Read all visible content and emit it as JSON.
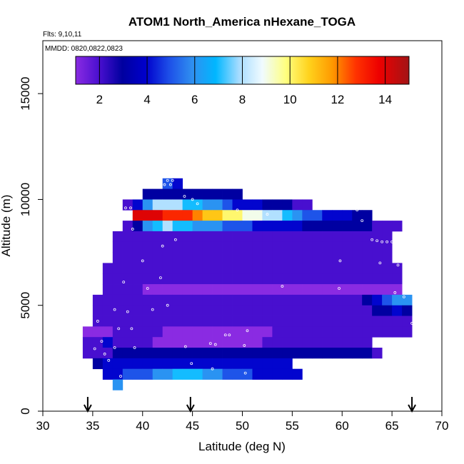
{
  "chart_data": {
    "type": "heatmap",
    "title": "ATOM1 North_America nHexane_TOGA",
    "flights_label": "Flts: 9,10,11",
    "dates_label": "MMDD: 0820,0822,0823",
    "xlabel": "Latitude (deg N)",
    "ylabel": "Altitude (m)",
    "xlim": [
      30,
      70
    ],
    "ylim": [
      0,
      17500
    ],
    "x_ticks": [
      "30",
      "35",
      "40",
      "45",
      "50",
      "55",
      "60",
      "65",
      "70"
    ],
    "y_ticks": [
      "0",
      "5000",
      "10000",
      "15000"
    ],
    "colorbar": {
      "range": [
        1,
        15
      ],
      "tick_values": [
        2,
        4,
        6,
        8,
        10,
        12,
        14
      ],
      "tick_labels": [
        "2",
        "4",
        "6",
        "8",
        "10",
        "12",
        "14"
      ]
    },
    "cell_size": {
      "lat": 1.0,
      "alt": 500
    },
    "grid_rows": [
      {
        "alt": 10750,
        "lat_start": 42,
        "values": [
          5,
          4
        ]
      },
      {
        "alt": 10250,
        "lat_start": 40,
        "values": [
          3,
          3,
          3,
          3,
          3,
          3,
          3,
          3,
          3,
          3
        ]
      },
      {
        "alt": 9750,
        "lat_start": 38,
        "values": [
          2,
          4,
          6,
          8,
          8,
          8,
          7,
          7,
          6,
          6,
          5,
          4,
          4,
          4,
          3,
          3,
          3,
          2,
          2
        ]
      },
      {
        "alt": 9250,
        "lat_start": 39,
        "values": [
          14,
          14,
          14,
          13,
          13,
          13,
          12,
          11,
          11,
          10,
          10,
          9,
          9,
          8,
          8,
          7,
          6,
          5,
          5,
          4,
          4,
          4,
          3,
          3
        ]
      },
      {
        "alt": 8750,
        "lat_start": 38,
        "values": [
          2,
          3,
          6,
          7,
          8,
          7,
          7,
          6,
          6,
          6,
          5,
          5,
          5,
          4,
          4,
          4,
          4,
          4,
          3,
          3,
          3,
          3,
          3,
          3,
          3,
          2,
          2,
          2
        ]
      },
      {
        "alt": 8250,
        "lat_start": 37,
        "values": [
          2,
          2,
          2,
          2,
          2,
          2,
          2,
          2,
          2,
          2,
          2,
          2,
          2,
          2,
          2,
          2,
          2,
          2,
          2,
          2,
          2,
          2,
          2,
          2,
          2,
          2,
          2,
          2
        ]
      },
      {
        "alt": 7750,
        "lat_start": 37,
        "values": [
          2,
          2,
          2,
          2,
          2,
          2,
          2,
          2,
          2,
          2,
          2,
          2,
          2,
          2,
          2,
          2,
          2,
          2,
          2,
          2,
          2,
          2,
          2,
          2,
          2,
          2,
          2,
          2
        ]
      },
      {
        "alt": 7250,
        "lat_start": 37,
        "values": [
          2,
          2,
          2,
          2,
          2,
          2,
          2,
          2,
          2,
          2,
          2,
          2,
          2,
          2,
          2,
          2,
          2,
          2,
          2,
          2,
          2,
          2,
          2,
          2,
          2,
          2,
          2,
          2
        ]
      },
      {
        "alt": 6750,
        "lat_start": 36,
        "values": [
          2,
          2,
          2,
          2,
          2,
          2,
          2,
          2,
          2,
          2,
          2,
          2,
          2,
          2,
          2,
          2,
          2,
          2,
          2,
          2,
          2,
          2,
          2,
          2,
          2,
          2,
          2,
          2,
          2,
          2
        ]
      },
      {
        "alt": 6250,
        "lat_start": 36,
        "values": [
          2,
          2,
          2,
          2,
          2,
          2,
          2,
          2,
          2,
          2,
          2,
          2,
          2,
          2,
          2,
          2,
          2,
          2,
          2,
          2,
          2,
          2,
          2,
          2,
          2,
          2,
          2,
          2,
          2,
          2
        ]
      },
      {
        "alt": 5750,
        "lat_start": 36,
        "values": [
          2,
          2,
          2,
          2,
          1,
          1,
          1,
          1,
          1,
          1,
          1,
          1,
          1,
          1,
          1,
          1,
          1,
          1,
          1,
          1,
          1,
          1,
          1,
          1,
          1,
          1,
          1,
          1,
          1,
          1
        ]
      },
      {
        "alt": 5250,
        "lat_start": 35,
        "values": [
          2,
          2,
          2,
          2,
          2,
          2,
          2,
          2,
          2,
          2,
          2,
          2,
          2,
          2,
          2,
          2,
          2,
          2,
          2,
          2,
          2,
          2,
          2,
          2,
          2,
          2,
          2,
          3,
          4,
          5,
          6,
          6
        ]
      },
      {
        "alt": 4750,
        "lat_start": 35,
        "values": [
          2,
          2,
          2,
          2,
          2,
          2,
          2,
          2,
          2,
          2,
          2,
          2,
          2,
          2,
          2,
          2,
          2,
          2,
          2,
          2,
          2,
          2,
          2,
          2,
          2,
          2,
          2,
          2,
          3,
          3,
          4,
          3
        ]
      },
      {
        "alt": 4250,
        "lat_start": 35,
        "values": [
          2,
          2,
          2,
          2,
          2,
          2,
          2,
          2,
          2,
          2,
          2,
          2,
          2,
          2,
          2,
          2,
          2,
          2,
          2,
          2,
          2,
          2,
          2,
          2,
          2,
          2,
          2,
          2,
          2,
          2,
          2,
          2
        ]
      },
      {
        "alt": 3750,
        "lat_start": 34,
        "values": [
          1,
          1,
          1,
          2,
          2,
          2,
          2,
          2,
          1,
          1,
          1,
          1,
          1,
          1,
          1,
          1,
          1,
          1,
          1,
          2,
          2,
          2,
          2,
          2,
          2,
          2,
          2,
          2,
          2,
          2,
          2,
          2,
          2
        ]
      },
      {
        "alt": 3250,
        "lat_start": 34,
        "values": [
          2,
          2,
          4,
          2,
          2,
          2,
          2,
          1,
          1,
          1,
          1,
          1,
          1,
          1,
          1,
          1,
          1,
          1,
          2,
          2,
          2,
          2,
          2,
          2,
          2,
          2,
          2,
          2,
          2
        ]
      },
      {
        "alt": 2750,
        "lat_start": 34,
        "values": [
          2,
          2,
          2,
          3,
          3,
          3,
          3,
          3,
          3,
          3,
          3,
          3,
          3,
          3,
          3,
          3,
          3,
          3,
          3,
          3,
          3,
          3,
          3,
          3,
          3,
          3,
          3,
          3,
          3,
          2
        ]
      },
      {
        "alt": 2250,
        "lat_start": 35,
        "values": [
          3,
          4,
          4,
          4,
          4,
          4,
          4,
          4,
          4,
          4,
          4,
          4,
          4,
          4,
          4,
          4,
          4,
          4,
          4,
          4
        ]
      },
      {
        "alt": 1750,
        "lat_start": 36,
        "values": [
          4,
          4,
          5,
          5,
          5,
          6,
          6,
          7,
          7,
          7,
          6,
          6,
          5,
          5,
          5,
          4,
          4,
          4,
          4,
          4
        ]
      },
      {
        "alt": 1250,
        "lat_start": 37,
        "values": [
          6
        ]
      }
    ],
    "sample_points": [
      [
        42.5,
        10900
      ],
      [
        43,
        10900
      ],
      [
        42.2,
        10700
      ],
      [
        42.8,
        10700
      ],
      [
        44.2,
        10150
      ],
      [
        45,
        10000
      ],
      [
        38.3,
        9600
      ],
      [
        38.8,
        9600
      ],
      [
        45.5,
        9800
      ],
      [
        49.5,
        9500
      ],
      [
        52.5,
        9300
      ],
      [
        61.5,
        9500
      ],
      [
        62,
        9000
      ],
      [
        39,
        8600
      ],
      [
        43.3,
        8100
      ],
      [
        42,
        7800
      ],
      [
        63,
        8100
      ],
      [
        63.5,
        8050
      ],
      [
        64,
        8000
      ],
      [
        64.5,
        8000
      ],
      [
        65,
        8000
      ],
      [
        65.5,
        7950
      ],
      [
        40,
        7100
      ],
      [
        59.8,
        7100
      ],
      [
        63.8,
        7000
      ],
      [
        65.6,
        6900
      ],
      [
        41.8,
        6300
      ],
      [
        38.1,
        6100
      ],
      [
        40.5,
        5800
      ],
      [
        54,
        5900
      ],
      [
        59.7,
        5800
      ],
      [
        65.3,
        5600
      ],
      [
        66.2,
        5400
      ],
      [
        42.5,
        5000
      ],
      [
        41,
        4800
      ],
      [
        37.2,
        4800
      ],
      [
        38.5,
        4700
      ],
      [
        35.5,
        4250
      ],
      [
        67,
        4150
      ],
      [
        37.6,
        3900
      ],
      [
        38.9,
        3900
      ],
      [
        35.9,
        3300
      ],
      [
        48.3,
        3600
      ],
      [
        48.7,
        3600
      ],
      [
        50.5,
        3800
      ],
      [
        37.2,
        3000
      ],
      [
        39.2,
        3000
      ],
      [
        46.8,
        3200
      ],
      [
        47.3,
        3150
      ],
      [
        44.3,
        3050
      ],
      [
        50.2,
        3100
      ],
      [
        35.2,
        2950
      ],
      [
        36.2,
        2700
      ],
      [
        36.6,
        2400
      ],
      [
        44.9,
        2250
      ],
      [
        47,
        2000
      ],
      [
        50.3,
        1800
      ],
      [
        37.8,
        1650
      ]
    ],
    "arrows_lat": [
      34.5,
      44.8,
      67.0
    ]
  }
}
